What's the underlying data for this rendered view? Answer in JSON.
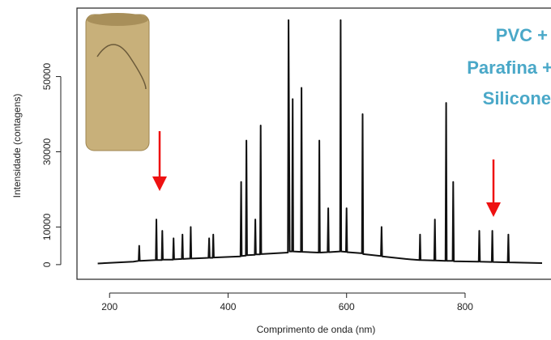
{
  "chart_data": {
    "type": "line",
    "x_label": "Comprimento de onda (nm)",
    "y_label": "Intensidade (contagens)",
    "annotation": [
      "PVC +",
      "Parafina +",
      "Silicone"
    ],
    "xlim": [
      145,
      945
    ],
    "ylim": [
      -3900,
      68200
    ],
    "xticks": [
      200,
      400,
      600,
      800
    ],
    "yticks": [
      0,
      10000,
      30000,
      50000
    ],
    "series": [
      {
        "color": "#111111",
        "x": [
          180,
          240,
          249,
          250,
          251,
          278,
          279,
          280,
          288,
          289,
          290,
          307,
          308,
          309,
          322,
          323,
          324,
          336,
          337,
          338,
          367,
          368,
          369,
          374,
          375,
          376,
          421,
          422,
          423,
          430,
          431,
          432,
          445,
          446,
          447,
          454,
          455,
          456,
          480,
          501,
          502,
          504,
          508,
          509,
          510,
          523,
          524,
          525,
          553,
          554,
          555,
          568,
          569,
          570,
          589,
          590,
          591,
          599,
          600,
          601,
          626,
          627,
          628,
          658,
          659,
          660,
          700,
          723,
          724,
          725,
          748,
          749,
          750,
          767,
          768,
          769,
          779,
          780,
          781,
          823,
          824,
          825,
          845,
          846,
          847,
          872,
          873,
          874,
          930
        ],
        "values": [
          300,
          800,
          1000,
          5000,
          1000,
          1200,
          12000,
          1200,
          1200,
          9000,
          1300,
          1300,
          7000,
          1400,
          1500,
          8000,
          1500,
          1600,
          10000,
          1600,
          1800,
          7000,
          1800,
          1800,
          8000,
          1900,
          2200,
          22000,
          2300,
          2400,
          33000,
          2500,
          2600,
          12000,
          2700,
          2700,
          37000,
          2800,
          3000,
          3200,
          65000,
          3500,
          3500,
          44000,
          3500,
          3400,
          47000,
          3400,
          3200,
          33000,
          3200,
          3300,
          15000,
          3300,
          3500,
          65000,
          3500,
          3400,
          15000,
          3300,
          3000,
          40000,
          2800,
          2300,
          10000,
          2200,
          1500,
          1200,
          8000,
          1200,
          1100,
          12000,
          1100,
          1000,
          43000,
          1000,
          1000,
          22000,
          900,
          800,
          9000,
          800,
          700,
          9000,
          700,
          600,
          8000,
          600,
          400
        ]
      }
    ]
  }
}
